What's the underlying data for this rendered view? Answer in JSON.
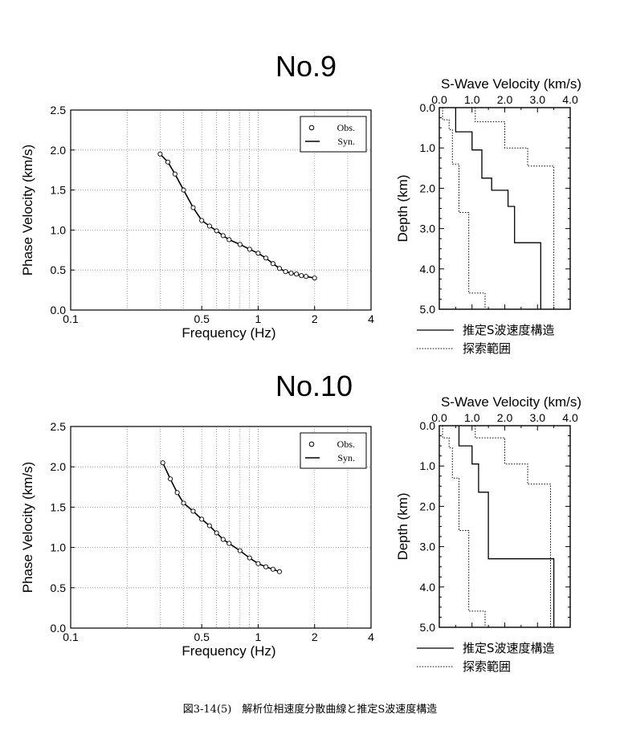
{
  "caption": "図3-14(5)　解析位相速度分散曲線と推定S波速度構造",
  "panels": [
    {
      "title": "No.9",
      "dispersion": {
        "xlabel": "Frequency (Hz)",
        "ylabel": "Phase Velocity (km/s)",
        "xticks": [
          "0.1",
          "0.5",
          "1",
          "2",
          "4"
        ],
        "yticks": [
          "0.0",
          "0.5",
          "1.0",
          "1.5",
          "2.0",
          "2.5"
        ],
        "legend": {
          "obs": "Obs.",
          "syn": "Syn."
        }
      },
      "profile": {
        "xlabel": "S-Wave Velocity (km/s)",
        "ylabel": "Depth (km)",
        "xticks": [
          "0.0",
          "1.0",
          "2.0",
          "3.0",
          "4.0"
        ],
        "yticks": [
          "0.0",
          "1.0",
          "2.0",
          "3.0",
          "4.0",
          "5.0"
        ],
        "legend": {
          "estimated": "推定S波速度構造",
          "search": "探索範囲"
        }
      }
    },
    {
      "title": "No.10",
      "dispersion": {
        "xlabel": "Frequency (Hz)",
        "ylabel": "Phase Velocity (km/s)",
        "xticks": [
          "0.1",
          "0.5",
          "1",
          "2",
          "4"
        ],
        "yticks": [
          "0.0",
          "0.5",
          "1.0",
          "1.5",
          "2.0",
          "2.5"
        ],
        "legend": {
          "obs": "Obs.",
          "syn": "Syn."
        }
      },
      "profile": {
        "xlabel": "S-Wave Velocity (km/s)",
        "ylabel": "Depth (km)",
        "xticks": [
          "0.0",
          "1.0",
          "2.0",
          "3.0",
          "4.0"
        ],
        "yticks": [
          "0.0",
          "1.0",
          "2.0",
          "3.0",
          "4.0",
          "5.0"
        ],
        "legend": {
          "estimated": "推定S波速度構造",
          "search": "探索範囲"
        }
      }
    }
  ],
  "chart_data": [
    {
      "type": "scatter",
      "panel": "No.9",
      "xlabel": "Frequency (Hz)",
      "ylabel": "Phase Velocity (km/s)",
      "xscale": "log",
      "xlim": [
        0.1,
        4
      ],
      "ylim": [
        0,
        2.5
      ],
      "grid": true,
      "legend_position": "top-right",
      "series": [
        {
          "name": "Obs.",
          "style": "circle",
          "x": [
            0.3,
            0.33,
            0.36,
            0.4,
            0.45,
            0.5,
            0.55,
            0.6,
            0.65,
            0.7,
            0.8,
            0.9,
            1.0,
            1.1,
            1.2,
            1.3,
            1.4,
            1.5,
            1.6,
            1.7,
            1.8,
            2.0
          ],
          "y": [
            1.95,
            1.85,
            1.7,
            1.5,
            1.28,
            1.12,
            1.05,
            0.99,
            0.93,
            0.88,
            0.82,
            0.76,
            0.71,
            0.65,
            0.58,
            0.52,
            0.48,
            0.46,
            0.45,
            0.43,
            0.42,
            0.4
          ]
        },
        {
          "name": "Syn.",
          "style": "line",
          "x": [
            0.3,
            0.33,
            0.36,
            0.4,
            0.45,
            0.5,
            0.55,
            0.6,
            0.65,
            0.7,
            0.8,
            0.9,
            1.0,
            1.1,
            1.2,
            1.3,
            1.4,
            1.5,
            1.6,
            1.7,
            1.8,
            2.0
          ],
          "y": [
            1.95,
            1.85,
            1.7,
            1.5,
            1.28,
            1.12,
            1.05,
            0.99,
            0.93,
            0.88,
            0.82,
            0.76,
            0.71,
            0.65,
            0.58,
            0.52,
            0.48,
            0.46,
            0.45,
            0.43,
            0.42,
            0.4
          ]
        }
      ]
    },
    {
      "type": "line",
      "panel": "No.9",
      "xlabel": "S-Wave Velocity (km/s)",
      "ylabel": "Depth (km)",
      "xlim": [
        0,
        4
      ],
      "ylim": [
        5,
        0
      ],
      "grid": false,
      "legend_position": "below",
      "series": [
        {
          "name": "推定S波速度構造",
          "style": "solid",
          "x": [
            0.5,
            0.5,
            1.0,
            1.0,
            1.3,
            1.3,
            1.6,
            1.6,
            2.1,
            2.1,
            2.3,
            2.3,
            3.1,
            3.1
          ],
          "y": [
            0.0,
            0.6,
            0.6,
            1.05,
            1.05,
            1.75,
            1.75,
            2.05,
            2.05,
            2.45,
            2.45,
            3.35,
            3.35,
            5.0
          ]
        },
        {
          "name": "探索範囲",
          "style": "dotted",
          "bound": "min",
          "x": [
            0.1,
            0.1,
            0.3,
            0.3,
            0.4,
            0.4,
            0.6,
            0.6,
            0.9,
            0.9,
            1.4,
            1.4
          ],
          "y": [
            0.0,
            0.3,
            0.3,
            0.55,
            0.55,
            1.4,
            1.4,
            2.6,
            2.6,
            4.6,
            4.6,
            5.0
          ]
        },
        {
          "name": "探索範囲",
          "style": "dotted",
          "bound": "max",
          "x": [
            1.1,
            1.1,
            2.0,
            2.0,
            2.7,
            2.7,
            3.5,
            3.5
          ],
          "y": [
            0.0,
            0.35,
            0.35,
            1.0,
            1.0,
            1.45,
            1.45,
            5.0
          ]
        }
      ]
    },
    {
      "type": "scatter",
      "panel": "No.10",
      "xlabel": "Frequency (Hz)",
      "ylabel": "Phase Velocity (km/s)",
      "xscale": "log",
      "xlim": [
        0.1,
        4
      ],
      "ylim": [
        0,
        2.5
      ],
      "grid": true,
      "legend_position": "top-right",
      "series": [
        {
          "name": "Obs.",
          "style": "circle",
          "x": [
            0.31,
            0.34,
            0.37,
            0.4,
            0.45,
            0.5,
            0.55,
            0.6,
            0.65,
            0.7,
            0.8,
            0.9,
            1.0,
            1.1,
            1.2,
            1.3
          ],
          "y": [
            2.05,
            1.85,
            1.68,
            1.55,
            1.45,
            1.35,
            1.27,
            1.18,
            1.1,
            1.05,
            0.96,
            0.87,
            0.8,
            0.76,
            0.73,
            0.7
          ]
        },
        {
          "name": "Syn.",
          "style": "line",
          "x": [
            0.31,
            0.34,
            0.37,
            0.4,
            0.45,
            0.5,
            0.55,
            0.6,
            0.65,
            0.7,
            0.8,
            0.9,
            1.0,
            1.1,
            1.2,
            1.3
          ],
          "y": [
            2.05,
            1.85,
            1.68,
            1.55,
            1.45,
            1.35,
            1.27,
            1.18,
            1.1,
            1.05,
            0.96,
            0.87,
            0.8,
            0.76,
            0.73,
            0.7
          ]
        }
      ]
    },
    {
      "type": "line",
      "panel": "No.10",
      "xlabel": "S-Wave Velocity (km/s)",
      "ylabel": "Depth (km)",
      "xlim": [
        0,
        4
      ],
      "ylim": [
        5,
        0
      ],
      "grid": false,
      "legend_position": "below",
      "series": [
        {
          "name": "推定S波速度構造",
          "style": "solid",
          "x": [
            0.6,
            0.6,
            1.0,
            1.0,
            1.2,
            1.2,
            1.5,
            1.5,
            2.0,
            2.0,
            3.5,
            3.5
          ],
          "y": [
            0.0,
            0.5,
            0.5,
            0.95,
            0.95,
            1.65,
            1.65,
            3.3,
            3.3,
            3.3,
            3.3,
            5.0
          ]
        },
        {
          "name": "探索範囲",
          "style": "dotted",
          "bound": "min",
          "x": [
            0.1,
            0.1,
            0.3,
            0.3,
            0.4,
            0.4,
            0.6,
            0.6,
            0.9,
            0.9,
            1.4,
            1.4
          ],
          "y": [
            0.0,
            0.3,
            0.3,
            0.55,
            0.55,
            1.3,
            1.3,
            2.6,
            2.6,
            4.6,
            4.6,
            5.0
          ]
        },
        {
          "name": "探索範囲",
          "style": "dotted",
          "bound": "max",
          "x": [
            1.1,
            1.1,
            2.0,
            2.0,
            2.7,
            2.7,
            3.4,
            3.4
          ],
          "y": [
            0.0,
            0.3,
            0.3,
            0.95,
            0.95,
            1.45,
            1.45,
            5.0
          ]
        }
      ]
    }
  ]
}
